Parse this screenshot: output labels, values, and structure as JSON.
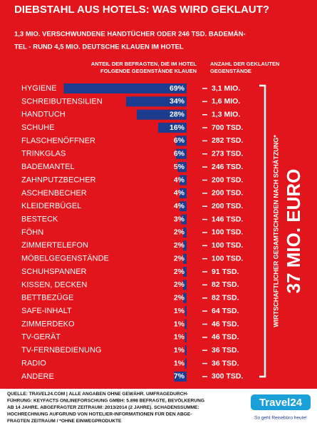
{
  "chart_data": {
    "type": "bar",
    "title": "DIEBSTAHL AUS HOTELS: WAS WIRD GEKLAUT?",
    "subtitle": [
      "1,3 MIO. VERSCHWUNDENE HANDTÜCHER ODER 246 TSD. BADEMÄN-",
      "TEL - RUND 4,5 MIO. DEUTSCHE KLAUEN IM HOTEL"
    ],
    "value_header": [
      "ANTEIL DER BEFRAGTEN, DIE IM HOTEL",
      "FOLGENDE GEGENSTÄNDE KLAUEN"
    ],
    "count_header": [
      "ANZAHL DER GEKLAUTEN",
      "GEGENSTÄNDE"
    ],
    "categories": [
      "HYGIENE",
      "SCHREIBUTENSILIEN",
      "HANDTUCH",
      "SCHUHE",
      "FLASCHENÖFFNER",
      "TRINKGLAS",
      "BADEMANTEL",
      "ZAHNPUTZBECHER",
      "ASCHENBECHER",
      "KLEIDERBÜGEL",
      "BESTECK",
      "FÖHN",
      "ZIMMERTELEFON",
      "MÖBELGEGENSTÄNDE",
      "SCHUHSPANNER",
      "KISSEN, DECKEN",
      "BETTBEZÜGE",
      "SAFE-INHALT",
      "ZIMMERDEKO",
      "TV-GERÄT",
      "TV-FERNBEDIENUNG",
      "RADIO",
      "ANDERE"
    ],
    "values": [
      69,
      34,
      28,
      16,
      6,
      6,
      5,
      4,
      4,
      4,
      3,
      2,
      2,
      2,
      2,
      2,
      2,
      1,
      1,
      1,
      1,
      1,
      7
    ],
    "value_labels": [
      "69%",
      "34%",
      "28%",
      "16%",
      "6%",
      "6%",
      "5%",
      "4%",
      "4%",
      "4%",
      "3%",
      "2%",
      "2%",
      "2%",
      "2%",
      "2%",
      "2%",
      "1%",
      "1%",
      "1%",
      "1%",
      "1%",
      "7%"
    ],
    "count_labels": [
      "3,1 MIO.",
      "1,6 MIO.",
      "1,3 MIO.",
      "700 TSD.",
      "282 TSD.",
      "273 TSD.",
      "246 TSD.",
      "200 TSD.",
      "200 TSD.",
      "200 TSD.",
      "146 TSD.",
      "100 TSD.",
      "100 TSD.",
      "100 TSD.",
      "91 TSD.",
      "82 TSD.",
      "82 TSD.",
      "64 TSD.",
      "46 TSD.",
      "46 TSD.",
      "36 TSD.",
      "36 TSD.",
      "300 TSD."
    ],
    "color": "#1c3c8f",
    "side_label": "WIRTSCHAFTLICHER GESAMTSCHADEN NACH SCHÄTZUNG*",
    "total": "37 MIO. EURO",
    "footer": [
      "QUELLE: TRAVEL24.COM | ALLE ANGABEN OHNE GEWÄHR. UMFRAGEDURCH-",
      "FÜHRUNG: KEYFACTS ONLINEFORSCHUNG GMBH: 5.898 BEFRAGTE, BEVÖLKERUNG",
      "AB 14 JAHRE. ABGEFRAGTER ZEITRAUM: 2013/2014 (2 JAHRE). SCHADENSSUMME:",
      "HOCHRECHNUNG AUFGRUND VON HOTELIER-INFORMATIONEN FÜR DEN ABGE-",
      "FRAGTEN ZEITRAUM  / *OHNE EINWEGPRODUKTE"
    ],
    "logo": "Travel24",
    "slogan": "So geht Reisebüro heute!"
  }
}
